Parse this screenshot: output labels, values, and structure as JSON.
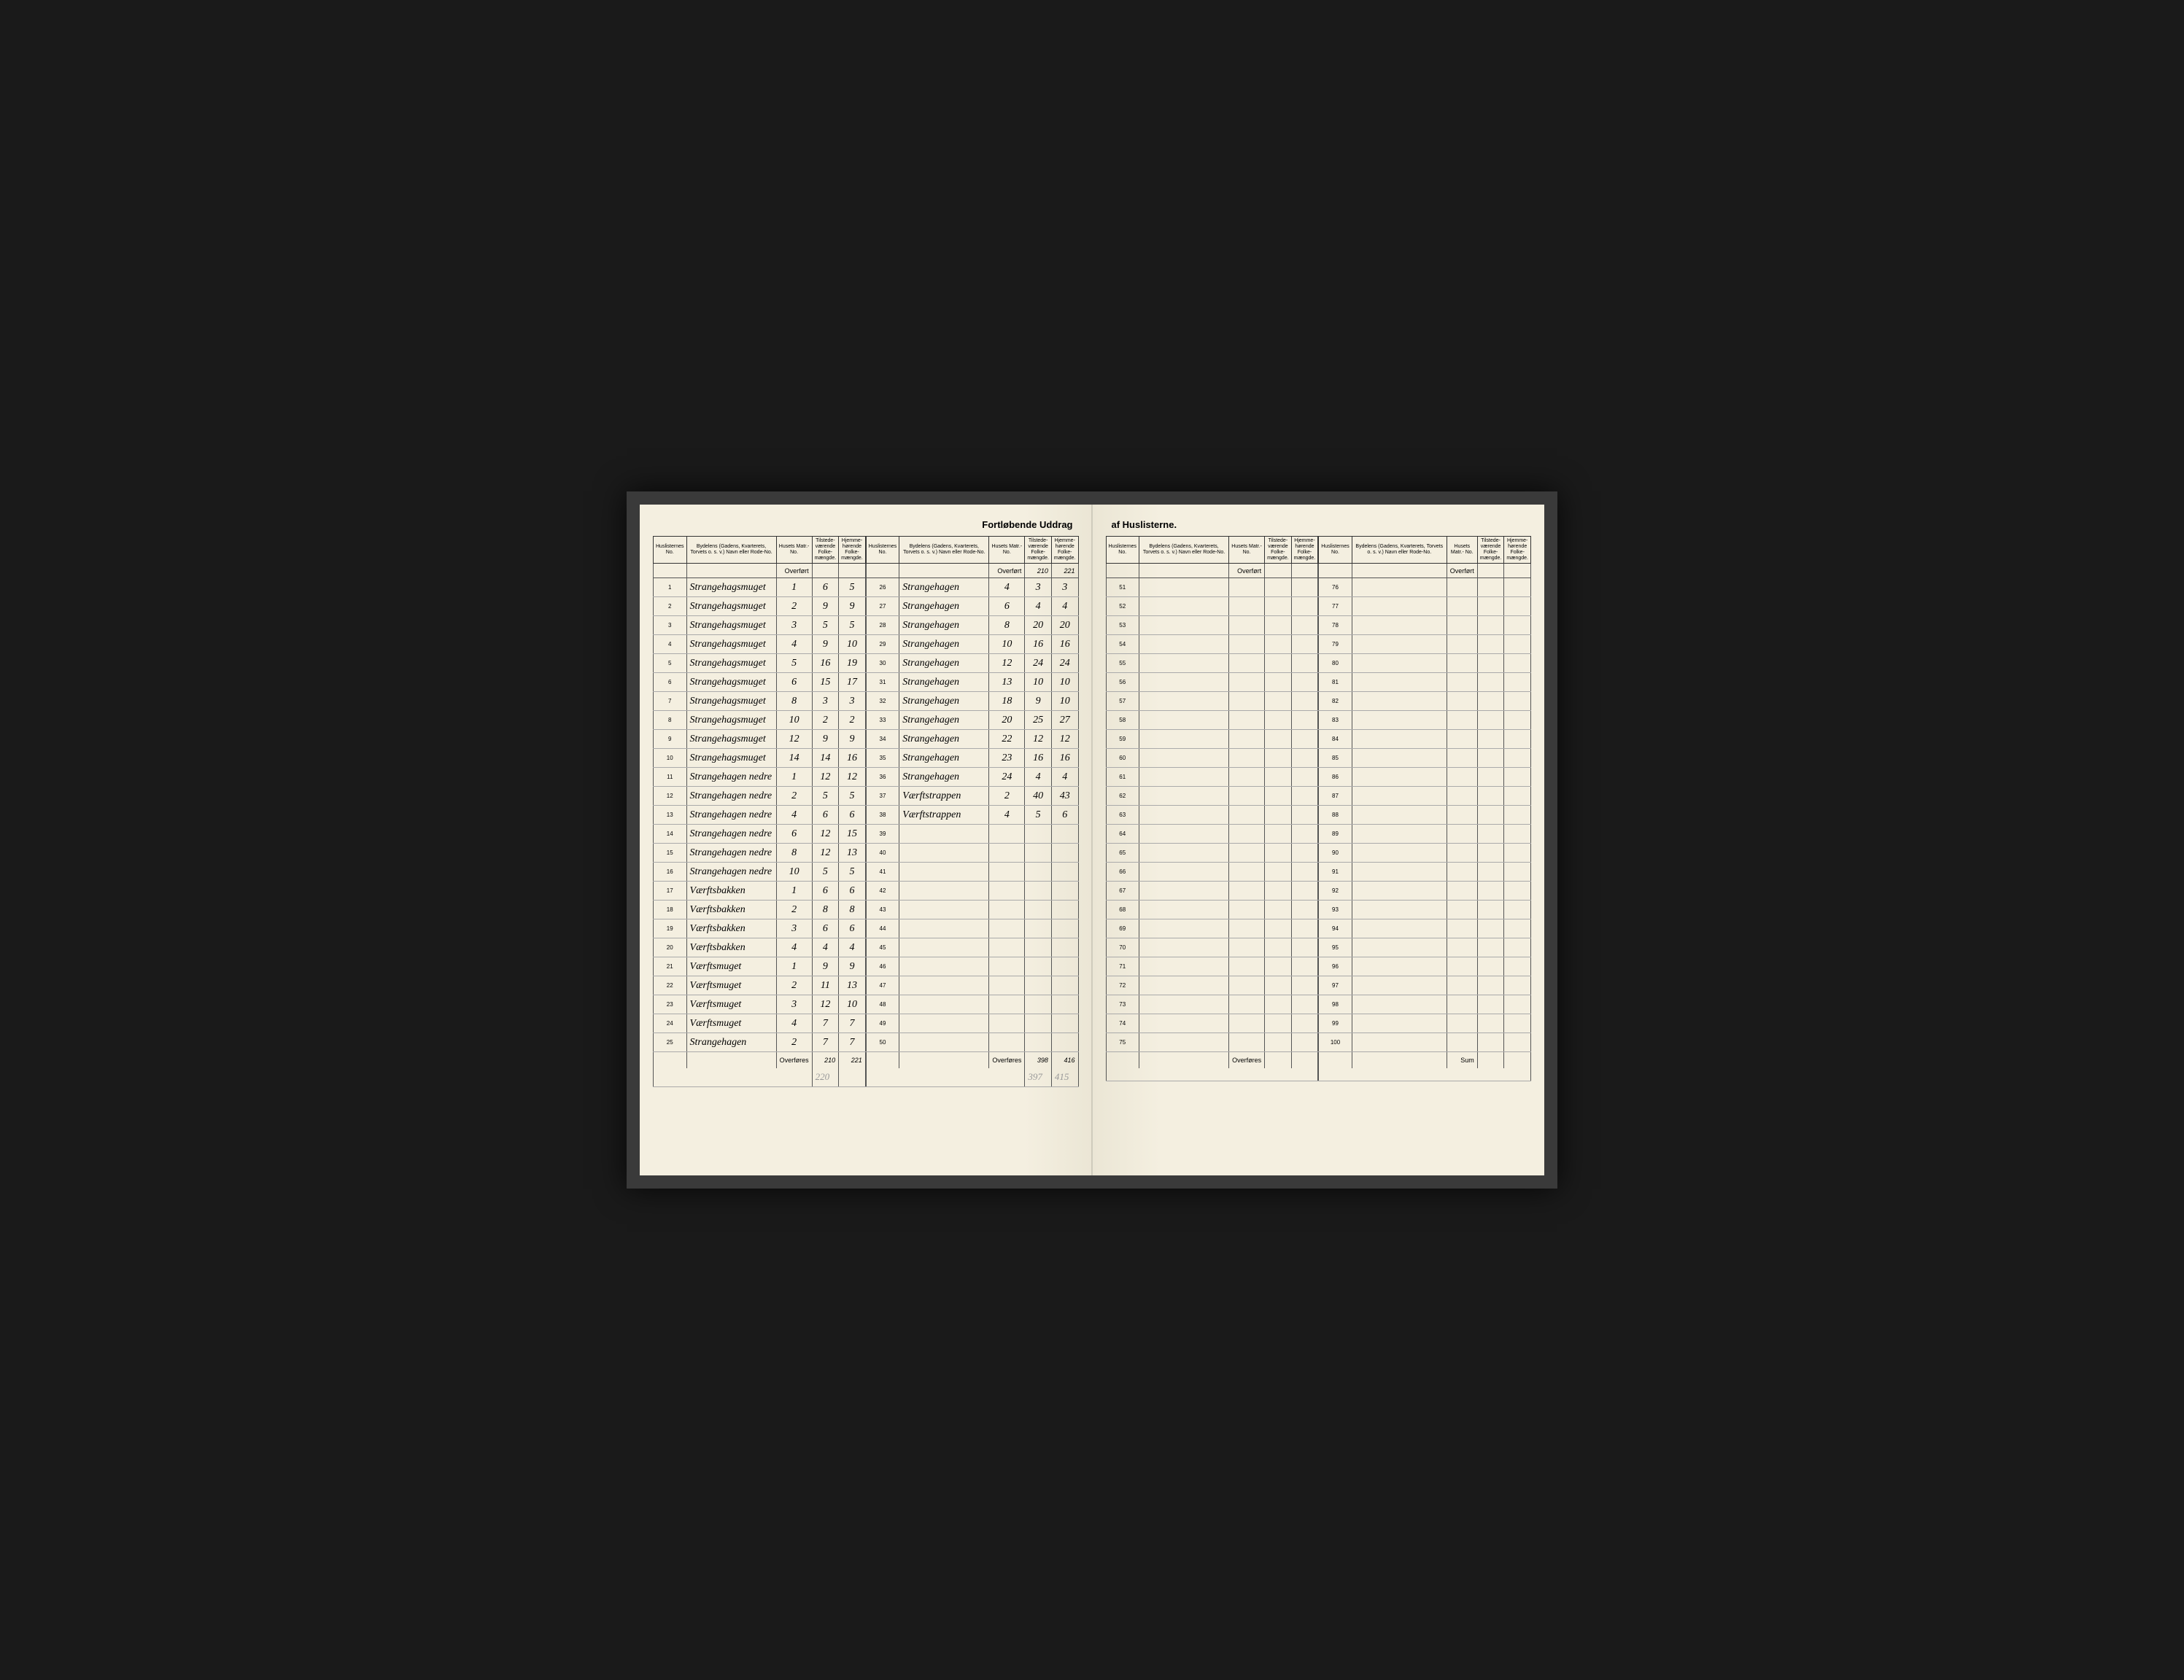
{
  "title_left": "Fortløbende Uddrag",
  "title_right": "af Huslisterne.",
  "headers": {
    "h_no": "Huslisternes\nNo.",
    "h_street": "Bydelens (Gadens, Kvarterets,\nTorvets o. s. v.) Navn eller\nRode-No.",
    "h_matr": "Husets\nMatr.-\nNo.",
    "h_tilstede": "Tilstede-\nværende\nFolke-\nmængde.",
    "h_hjemme": "Hjemme-\nhørende\nFolke-\nmængde."
  },
  "overfort": "Overført",
  "overfores": "Overføres",
  "sum": "Sum",
  "col1_overfort": {
    "a": "",
    "b": ""
  },
  "col2_overfort": {
    "a": "210",
    "b": "221"
  },
  "col1_overfores": {
    "a": "210",
    "b": "221"
  },
  "col2_overfores": {
    "a": "398",
    "b": "416"
  },
  "pencil_below": {
    "a": "220",
    "b": ""
  },
  "pencil_below2": {
    "a": "397",
    "b": "415"
  },
  "rows1": [
    {
      "n": "1",
      "s": "Strangehagsmuget",
      "m": "1",
      "t": "6",
      "h": "5"
    },
    {
      "n": "2",
      "s": "Strangehagsmuget",
      "m": "2",
      "t": "9",
      "h": "9"
    },
    {
      "n": "3",
      "s": "Strangehagsmuget",
      "m": "3",
      "t": "5",
      "h": "5"
    },
    {
      "n": "4",
      "s": "Strangehagsmuget",
      "m": "4",
      "t": "9",
      "h": "10"
    },
    {
      "n": "5",
      "s": "Strangehagsmuget",
      "m": "5",
      "t": "16",
      "h": "19"
    },
    {
      "n": "6",
      "s": "Strangehagsmuget",
      "m": "6",
      "t": "15",
      "h": "17"
    },
    {
      "n": "7",
      "s": "Strangehagsmuget",
      "m": "8",
      "t": "3",
      "h": "3"
    },
    {
      "n": "8",
      "s": "Strangehagsmuget",
      "m": "10",
      "t": "2",
      "h": "2"
    },
    {
      "n": "9",
      "s": "Strangehagsmuget",
      "m": "12",
      "t": "9",
      "h": "9"
    },
    {
      "n": "10",
      "s": "Strangehagsmuget",
      "m": "14",
      "t": "14",
      "h": "16"
    },
    {
      "n": "11",
      "s": "Strangehagen nedre",
      "m": "1",
      "t": "12",
      "h": "12"
    },
    {
      "n": "12",
      "s": "Strangehagen nedre",
      "m": "2",
      "t": "5",
      "h": "5"
    },
    {
      "n": "13",
      "s": "Strangehagen nedre",
      "m": "4",
      "t": "6",
      "h": "6"
    },
    {
      "n": "14",
      "s": "Strangehagen nedre",
      "m": "6",
      "t": "12",
      "h": "15"
    },
    {
      "n": "15",
      "s": "Strangehagen nedre",
      "m": "8",
      "t": "12",
      "h": "13"
    },
    {
      "n": "16",
      "s": "Strangehagen nedre",
      "m": "10",
      "t": "5",
      "h": "5"
    },
    {
      "n": "17",
      "s": "Værftsbakken",
      "m": "1",
      "t": "6",
      "h": "6"
    },
    {
      "n": "18",
      "s": "Værftsbakken",
      "m": "2",
      "t": "8",
      "h": "8"
    },
    {
      "n": "19",
      "s": "Værftsbakken",
      "m": "3",
      "t": "6",
      "h": "6"
    },
    {
      "n": "20",
      "s": "Værftsbakken",
      "m": "4",
      "t": "4",
      "h": "4"
    },
    {
      "n": "21",
      "s": "Værftsmuget",
      "m": "1",
      "t": "9",
      "h": "9"
    },
    {
      "n": "22",
      "s": "Værftsmuget",
      "m": "2",
      "t": "11",
      "h": "13"
    },
    {
      "n": "23",
      "s": "Værftsmuget",
      "m": "3",
      "t": "12",
      "h": "10"
    },
    {
      "n": "24",
      "s": "Værftsmuget",
      "m": "4",
      "t": "7",
      "h": "7"
    },
    {
      "n": "25",
      "s": "Strangehagen",
      "m": "2",
      "t": "7",
      "h": "7"
    }
  ],
  "rows2": [
    {
      "n": "26",
      "s": "Strangehagen",
      "m": "4",
      "t": "3",
      "h": "3"
    },
    {
      "n": "27",
      "s": "Strangehagen",
      "m": "6",
      "t": "4",
      "h": "4"
    },
    {
      "n": "28",
      "s": "Strangehagen",
      "m": "8",
      "t": "20",
      "h": "20"
    },
    {
      "n": "29",
      "s": "Strangehagen",
      "m": "10",
      "t": "16",
      "h": "16"
    },
    {
      "n": "30",
      "s": "Strangehagen",
      "m": "12",
      "t": "24",
      "h": "24"
    },
    {
      "n": "31",
      "s": "Strangehagen",
      "m": "13",
      "t": "10",
      "h": "10"
    },
    {
      "n": "32",
      "s": "Strangehagen",
      "m": "18",
      "t": "9",
      "h": "10"
    },
    {
      "n": "33",
      "s": "Strangehagen",
      "m": "20",
      "t": "25",
      "h": "27"
    },
    {
      "n": "34",
      "s": "Strangehagen",
      "m": "22",
      "t": "12",
      "h": "12"
    },
    {
      "n": "35",
      "s": "Strangehagen",
      "m": "23",
      "t": "16",
      "h": "16"
    },
    {
      "n": "36",
      "s": "Strangehagen",
      "m": "24",
      "t": "4",
      "h": "4"
    },
    {
      "n": "37",
      "s": "Værftstrappen",
      "m": "2",
      "t": "40",
      "h": "43"
    },
    {
      "n": "38",
      "s": "Værftstrappen",
      "m": "4",
      "t": "5",
      "h": "6"
    },
    {
      "n": "39",
      "s": "",
      "m": "",
      "t": "",
      "h": ""
    },
    {
      "n": "40",
      "s": "",
      "m": "",
      "t": "",
      "h": ""
    },
    {
      "n": "41",
      "s": "",
      "m": "",
      "t": "",
      "h": ""
    },
    {
      "n": "42",
      "s": "",
      "m": "",
      "t": "",
      "h": ""
    },
    {
      "n": "43",
      "s": "",
      "m": "",
      "t": "",
      "h": ""
    },
    {
      "n": "44",
      "s": "",
      "m": "",
      "t": "",
      "h": ""
    },
    {
      "n": "45",
      "s": "",
      "m": "",
      "t": "",
      "h": ""
    },
    {
      "n": "46",
      "s": "",
      "m": "",
      "t": "",
      "h": ""
    },
    {
      "n": "47",
      "s": "",
      "m": "",
      "t": "",
      "h": ""
    },
    {
      "n": "48",
      "s": "",
      "m": "",
      "t": "",
      "h": ""
    },
    {
      "n": "49",
      "s": "",
      "m": "",
      "t": "",
      "h": ""
    },
    {
      "n": "50",
      "s": "",
      "m": "",
      "t": "",
      "h": ""
    }
  ],
  "rows3": [
    {
      "n": "51"
    },
    {
      "n": "52"
    },
    {
      "n": "53"
    },
    {
      "n": "54"
    },
    {
      "n": "55"
    },
    {
      "n": "56"
    },
    {
      "n": "57"
    },
    {
      "n": "58"
    },
    {
      "n": "59"
    },
    {
      "n": "60"
    },
    {
      "n": "61"
    },
    {
      "n": "62"
    },
    {
      "n": "63"
    },
    {
      "n": "64"
    },
    {
      "n": "65"
    },
    {
      "n": "66"
    },
    {
      "n": "67"
    },
    {
      "n": "68"
    },
    {
      "n": "69"
    },
    {
      "n": "70"
    },
    {
      "n": "71"
    },
    {
      "n": "72"
    },
    {
      "n": "73"
    },
    {
      "n": "74"
    },
    {
      "n": "75"
    }
  ],
  "rows4": [
    {
      "n": "76"
    },
    {
      "n": "77"
    },
    {
      "n": "78"
    },
    {
      "n": "79"
    },
    {
      "n": "80"
    },
    {
      "n": "81"
    },
    {
      "n": "82"
    },
    {
      "n": "83"
    },
    {
      "n": "84"
    },
    {
      "n": "85"
    },
    {
      "n": "86"
    },
    {
      "n": "87"
    },
    {
      "n": "88"
    },
    {
      "n": "89"
    },
    {
      "n": "90"
    },
    {
      "n": "91"
    },
    {
      "n": "92"
    },
    {
      "n": "93"
    },
    {
      "n": "94"
    },
    {
      "n": "95"
    },
    {
      "n": "96"
    },
    {
      "n": "97"
    },
    {
      "n": "98"
    },
    {
      "n": "99"
    },
    {
      "n": "100"
    }
  ]
}
